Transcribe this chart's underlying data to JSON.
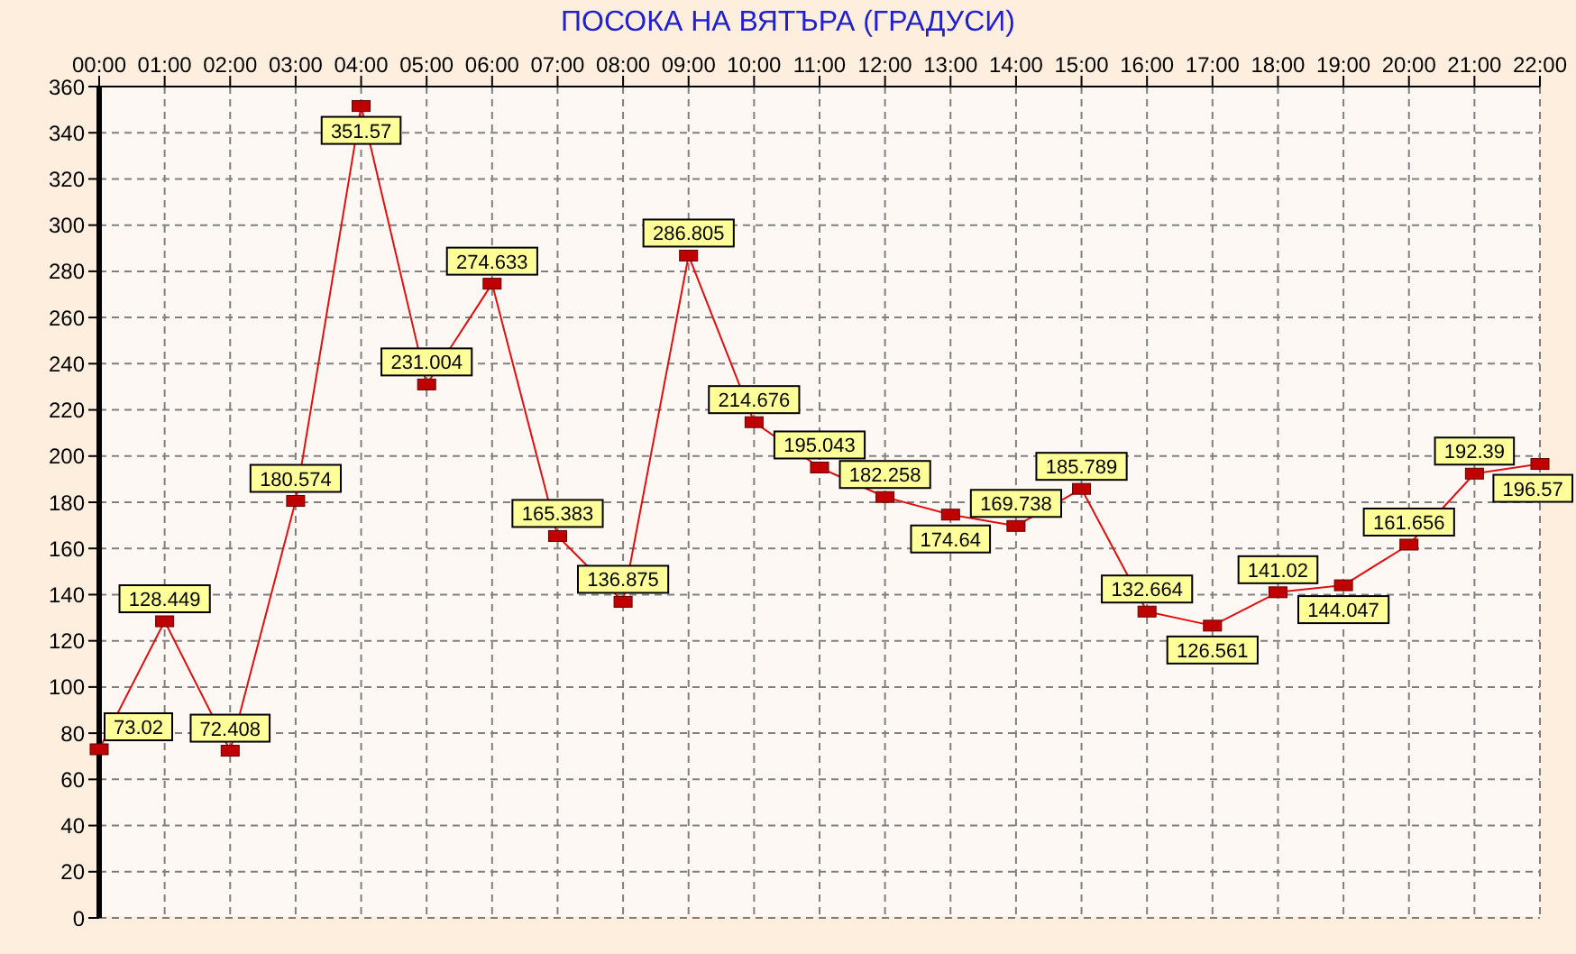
{
  "chart_data": {
    "type": "line",
    "title": "ПОСОКА НА ВЯТЪРА    (ГРАДУСИ)",
    "categories": [
      "00:00",
      "01:00",
      "02:00",
      "03:00",
      "04:00",
      "05:00",
      "06:00",
      "07:00",
      "08:00",
      "09:00",
      "10:00",
      "11:00",
      "12:00",
      "13:00",
      "14:00",
      "15:00",
      "16:00",
      "17:00",
      "18:00",
      "19:00",
      "20:00",
      "21:00",
      "22:00"
    ],
    "series": [
      {
        "color": "#e01010",
        "values": [
          73.02,
          128.449,
          72.408,
          180.574,
          351.57,
          231.004,
          274.633,
          165.383,
          136.875,
          286.805,
          214.676,
          195.043,
          182.258,
          174.64,
          169.738,
          185.789,
          132.664,
          126.561,
          141.02,
          144.047,
          161.656,
          192.39,
          196.57
        ]
      }
    ],
    "ylim": [
      0,
      360
    ],
    "yticks": [
      0,
      20,
      40,
      60,
      80,
      100,
      120,
      140,
      160,
      180,
      200,
      220,
      240,
      260,
      280,
      300,
      320,
      340,
      360
    ],
    "grid": true,
    "legend": false,
    "marker": "square",
    "line_style": "solid",
    "data_labels": true
  }
}
